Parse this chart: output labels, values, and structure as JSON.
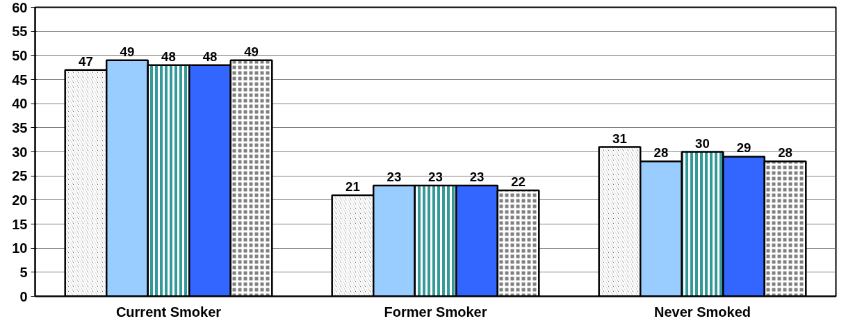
{
  "chart_data": {
    "type": "bar",
    "categories": [
      "Current Smoker",
      "Former Smoker",
      "Never Smoked"
    ],
    "series": [
      {
        "color": "#000000",
        "values": [
          47,
          21,
          31
        ]
      },
      {
        "color": "#99ccff",
        "values": [
          49,
          23,
          28
        ]
      },
      {
        "color": "#339999",
        "values": [
          48,
          23,
          30
        ]
      },
      {
        "color": "#3366ff",
        "values": [
          48,
          23,
          29
        ]
      },
      {
        "color": "#808080",
        "values": [
          49,
          22,
          28
        ]
      }
    ],
    "ylim": [
      0,
      60
    ],
    "yticks": [
      0,
      5,
      10,
      15,
      20,
      25,
      30,
      35,
      40,
      45,
      50,
      55,
      60
    ],
    "grid": "y",
    "data_labels": true
  }
}
